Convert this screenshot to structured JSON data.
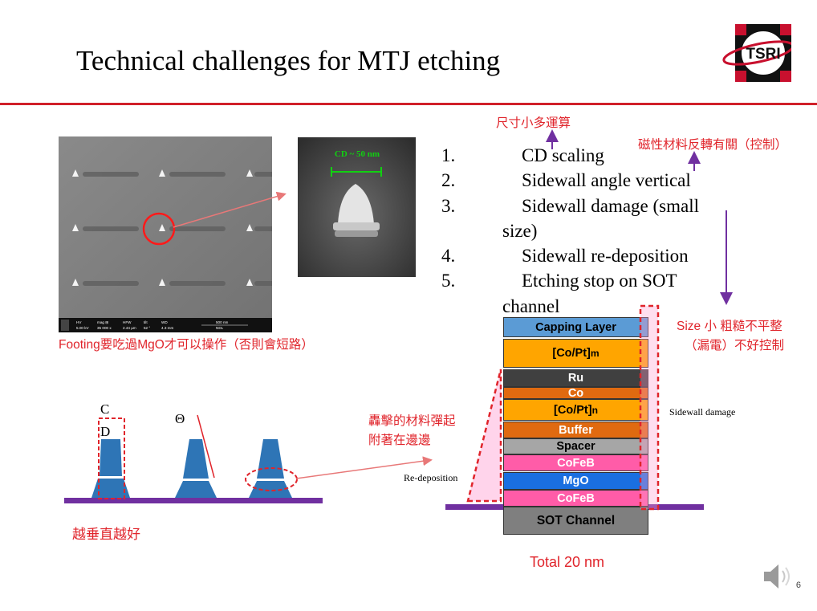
{
  "title": "Technical challenges for MTJ etching",
  "logo_text": "TSRI",
  "sem_scale_labels": [
    "HV",
    "mag ⊞",
    "HFW",
    "tilt",
    "WD",
    "500 nm",
    "5.00 kV",
    "35 000 x",
    "2.44 µm",
    "52 °",
    "4.3 mm",
    "NDL"
  ],
  "inset_label": "CD ~ 50 nm",
  "challenges": [
    {
      "num": "1.",
      "text": "CD scaling"
    },
    {
      "num": "2.",
      "text": "Sidewall angle vertical"
    },
    {
      "num": "3.",
      "text": "Sidewall damage (small",
      "wrap": "size)"
    },
    {
      "num": "4.",
      "text": "Sidewall re-deposition"
    },
    {
      "num": "5.",
      "text": "Etching stop on SOT",
      "wrap": "channel"
    }
  ],
  "annotations": {
    "cd_calc": "尺寸小多運算",
    "magnetic": "磁性材料反轉有關（控制）",
    "size_rough_1": "Size 小 粗糙不平整",
    "size_rough_2": "（漏電）不好控制",
    "footing": "Footing要吃過MgO才可以操作（否則會短路）",
    "bombard_1": "轟擊的材料彈起",
    "bombard_2": "附著在邊邊",
    "vertical": "越垂直越好",
    "total": "Total 20 nm"
  },
  "profile_labels": {
    "cd": [
      "C",
      "D"
    ],
    "theta": "Θ"
  },
  "stack_labels": {
    "sidewall_damage": "Sidewall damage",
    "redeposition": "Re-deposition"
  },
  "stack_layers": [
    {
      "name": "Capping Layer",
      "color": "#5b9bd5",
      "text": "k"
    },
    {
      "name": "[Co/Pt]",
      "sub": "m",
      "color": "#ffa500",
      "text": "k"
    },
    {
      "name": "Ru",
      "color": "#404040",
      "text": "w"
    },
    {
      "name": "Co",
      "color": "#e06a10",
      "text": "w"
    },
    {
      "name": "[Co/Pt]",
      "sub": "n",
      "color": "#ffa500",
      "text": "k"
    },
    {
      "name": "Buffer",
      "color": "#e06a10",
      "text": "w"
    },
    {
      "name": "Spacer",
      "color": "#a6a6a6",
      "text": "k"
    },
    {
      "name": "CoFeB",
      "color": "#ff5ca8",
      "text": "w"
    },
    {
      "name": "MgO",
      "color": "#1a6fe0",
      "text": "w"
    },
    {
      "name": "CoFeB",
      "color": "#ff5ca8",
      "text": "w"
    },
    {
      "name": "SOT Channel",
      "color": "#7f7f7f",
      "text": "k"
    }
  ],
  "page_number": "6",
  "colors": {
    "accent_red": "#e0242b",
    "rule": "#d0202a",
    "pillar": "#2e75b6",
    "channel": "#7030a0",
    "arrow_purple": "#7030a0"
  }
}
